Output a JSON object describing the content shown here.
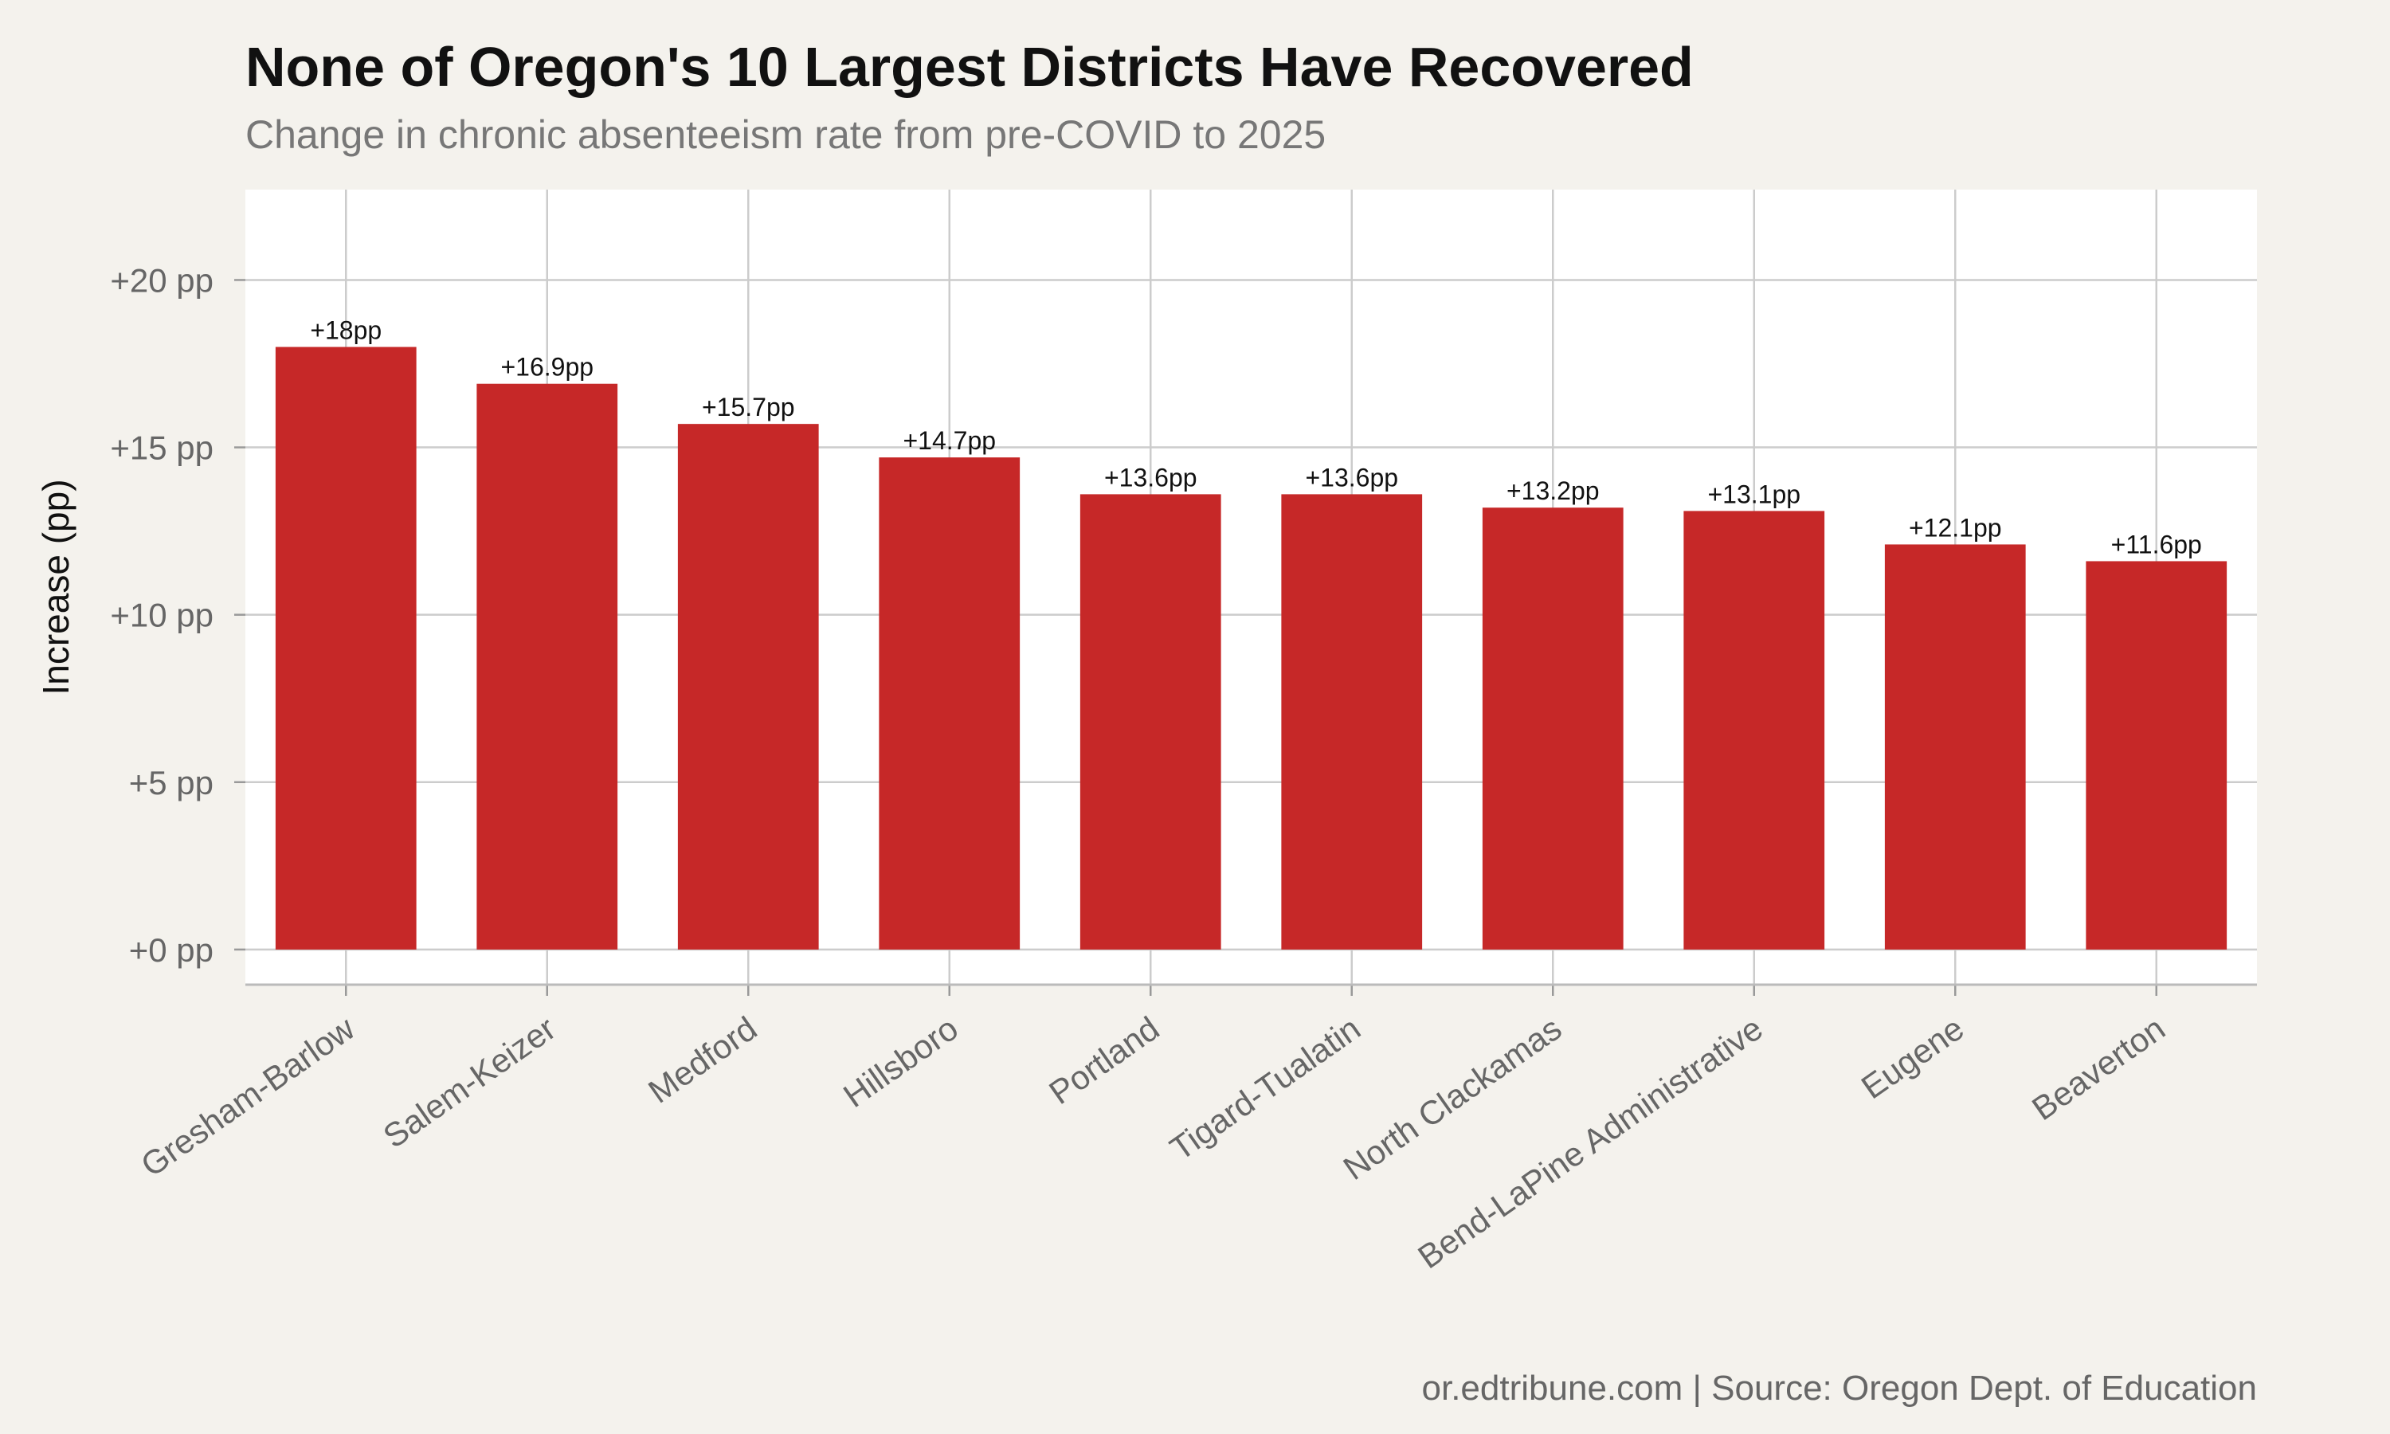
{
  "chart_data": {
    "type": "bar",
    "title": "None of Oregon's 10 Largest Districts Have Recovered",
    "subtitle": "Change in chronic absenteeism rate from pre-COVID to 2025",
    "ylabel": "Increase (pp)",
    "xlabel": "",
    "source": "or.edtribune.com | Source: Oregon Dept. of Education",
    "categories": [
      "Gresham-Barlow",
      "Salem-Keizer",
      "Medford",
      "Hillsboro",
      "Portland",
      "Tigard-Tualatin",
      "North Clackamas",
      "Bend-LaPine Administrative",
      "Eugene",
      "Beaverton"
    ],
    "values": [
      18,
      16.9,
      15.7,
      14.7,
      13.6,
      13.6,
      13.2,
      13.1,
      12.1,
      11.6
    ],
    "data_labels": [
      "+18pp",
      "+16.9pp",
      "+15.7pp",
      "+14.7pp",
      "+13.6pp",
      "+13.6pp",
      "+13.2pp",
      "+13.1pp",
      "+12.1pp",
      "+11.6pp"
    ],
    "yticks": [
      0,
      5,
      10,
      15,
      20
    ],
    "ytick_labels": [
      "+0 pp",
      "+5 pp",
      "+10 pp",
      "+15 pp",
      "+20 pp"
    ],
    "ylim": [
      -1.05,
      22.7
    ],
    "grid": true,
    "legend": "none",
    "bar_color": "#c62828",
    "panel_color": "#ffffff",
    "grid_color": "#cccccc",
    "background_color": "#f4f2ed"
  }
}
